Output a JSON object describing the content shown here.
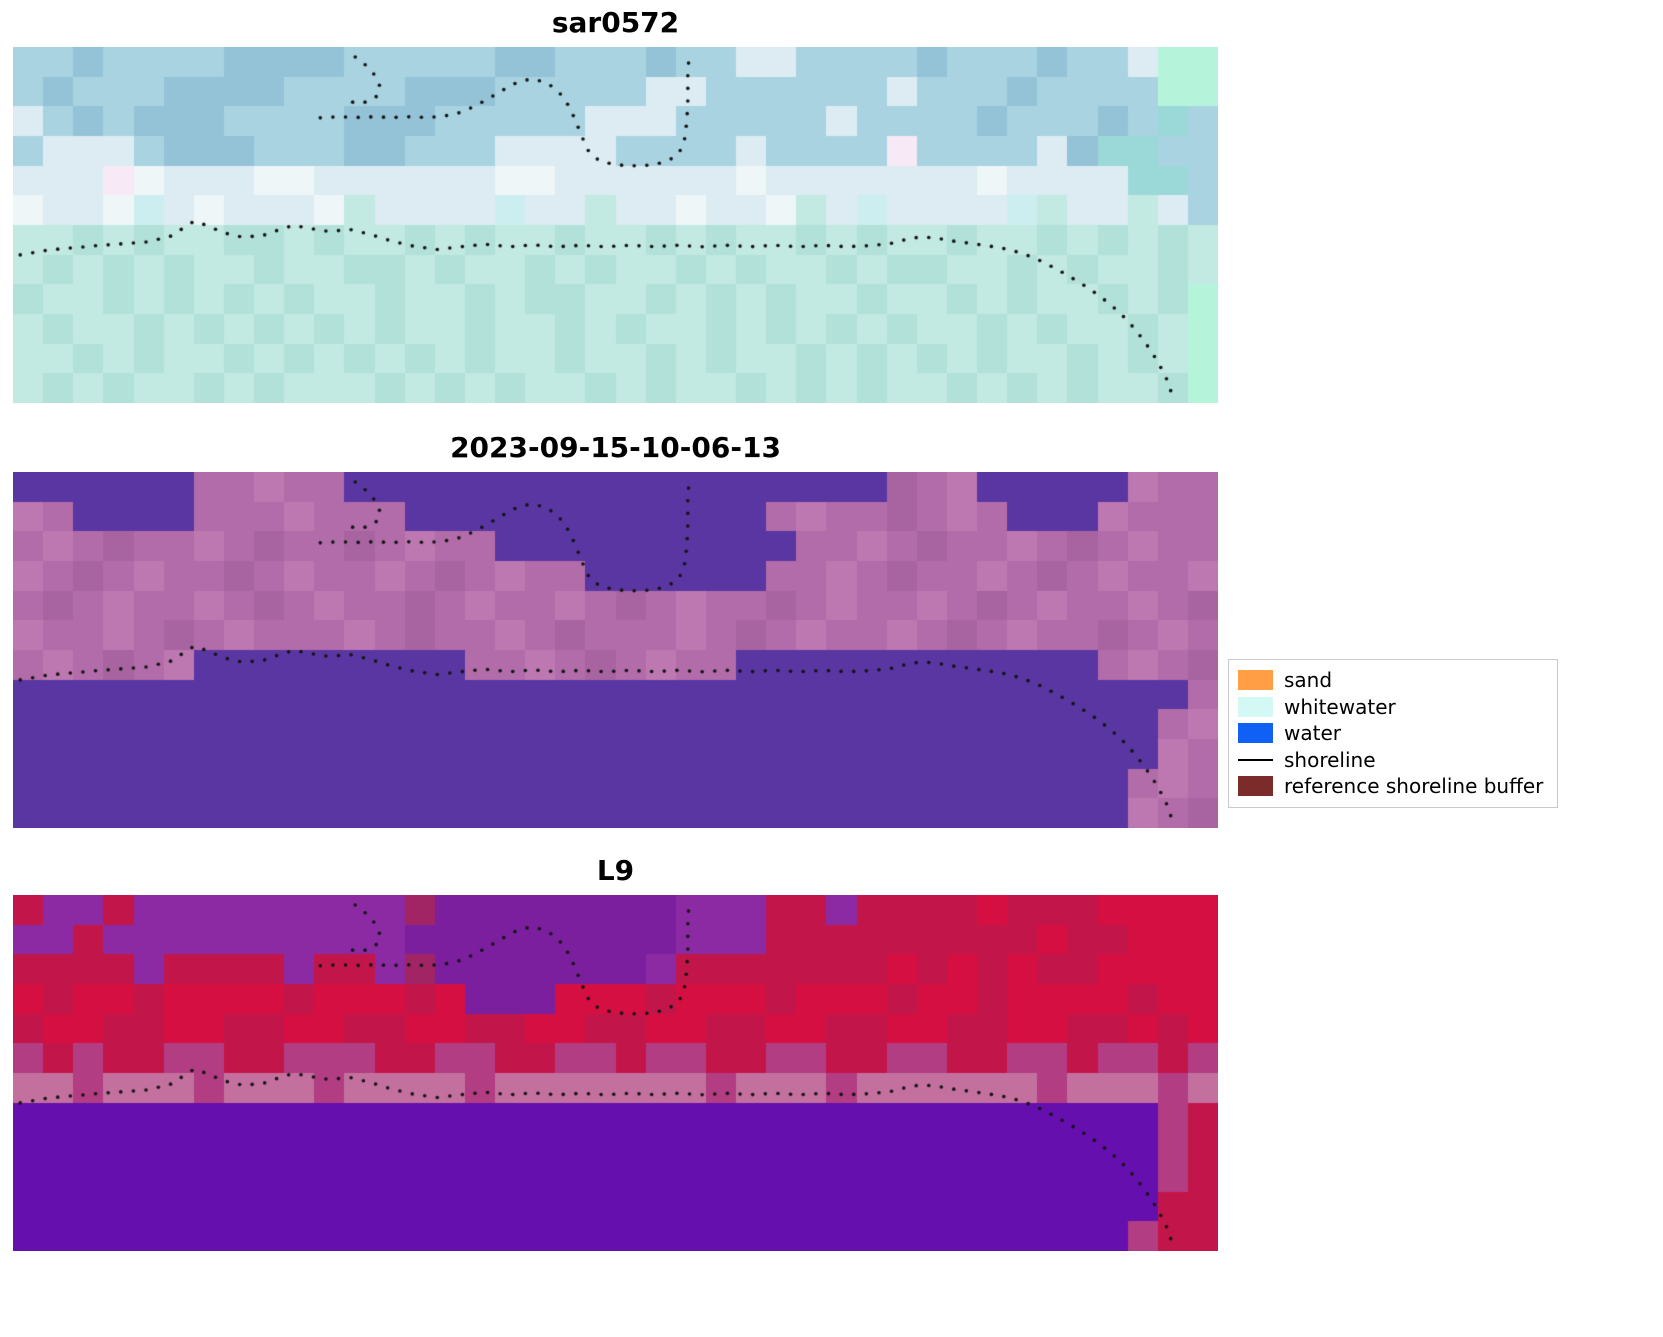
{
  "figure": {
    "background": "#ffffff",
    "panels": [
      {
        "id": "sar",
        "title": "sar0572",
        "palette": {
          "0": "#c3e9e3",
          "1": "#b2e1da",
          "2": "#a9d3e1",
          "3": "#94c3d7",
          "4": "#dcecf2",
          "5": "#eef6f8",
          "6": "#f7e9f5",
          "7": "#cdeef0",
          "8": "#b5f4db",
          "9": "#9bd8d8"
        },
        "rows": [
          "2232222333322222332223224422223222322488",
          "2322233332222333222224422222242223222288",
          "4232333222233322222444222224222232223292",
          "2444233322233222444422224222262222439922",
          "4446544455444444554444445444444454444992",
          "5445745444504444744044544504744447044042",
          "0010100110100101001001010010100100101010",
          "0101010010011010010100101001011001010010",
          "1001010101001001011001010100100101001018",
          "0100101010101001001010010101010010100108",
          "0010100101010101001001010010101010010108",
          "0101001010001010100101001010100101010018"
        ]
      },
      {
        "id": "classification",
        "title": "2023-09-15-10-06-13",
        "palette": {
          "0": "#5a36a3",
          "1": "#b26ca9",
          "2": "#bd78b2",
          "3": "#a864a0",
          "4": "#c884ba"
        },
        "rows": [
          "0000001121100000000000000000031200000211",
          "2100001112111000000000000121131210002111",
          "1213112131131211000000000011213112131211",
          "2131211312112131211000000112131121312112",
          "1312112131211312112131211312112131211213",
          "2112131211121311213111213121121312113121",
          "1213120000000001121312110000000000001213",
          "0000000000000000000000000000000000000001",
          "0000000000000000000000000000000000000012",
          "0000000000000000000000000000000000000021",
          "0000000000000000000000000000000000000121",
          "0000000000000000000000000000000000000213"
        ]
      },
      {
        "id": "l9",
        "title": "L9",
        "palette": {
          "0": "#650fae",
          "1": "#8c2aa4",
          "2": "#c2164a",
          "3": "#d60f42",
          "4": "#b23d82",
          "5": "#c4709f",
          "6": "#7b1f9e",
          "7": "#a12565"
        },
        "rows": [
          "2112111111111766666666111221222232223333",
          "1121111111111666666666111222222222322333",
          "2222122221221766666661222222232323223333",
          "3233233332333236663332333233323323333233",
          "2332233223322332233223322332233223322323",
          "4242244224442244224424422442244224424424",
          "5545554555455554555555545554555555455545",
          "0000000000000000000000000000000000000042",
          "0000000000000000000000000000000000000042",
          "0000000000000000000000000000000000000042",
          "0000000000000000000000000000000000000022",
          "0000000000000000000000000000000000000422"
        ]
      }
    ],
    "shoreline": {
      "color": "#141414",
      "dot_radius": 1.8,
      "spacing": 0.0105,
      "paths": {
        "main": [
          [
            0.006,
            0.584
          ],
          [
            0.03,
            0.57
          ],
          [
            0.07,
            0.558
          ],
          [
            0.11,
            0.548
          ],
          [
            0.13,
            0.533
          ],
          [
            0.143,
            0.505
          ],
          [
            0.15,
            0.49
          ],
          [
            0.16,
            0.5
          ],
          [
            0.175,
            0.522
          ],
          [
            0.19,
            0.534
          ],
          [
            0.207,
            0.53
          ],
          [
            0.222,
            0.512
          ],
          [
            0.233,
            0.501
          ],
          [
            0.247,
            0.51
          ],
          [
            0.262,
            0.518
          ],
          [
            0.28,
            0.513
          ],
          [
            0.297,
            0.527
          ],
          [
            0.315,
            0.546
          ],
          [
            0.333,
            0.56
          ],
          [
            0.352,
            0.569
          ],
          [
            0.372,
            0.561
          ],
          [
            0.392,
            0.554
          ],
          [
            0.412,
            0.561
          ],
          [
            0.432,
            0.556
          ],
          [
            0.452,
            0.561
          ],
          [
            0.472,
            0.557
          ],
          [
            0.492,
            0.561
          ],
          [
            0.512,
            0.557
          ],
          [
            0.532,
            0.561
          ],
          [
            0.552,
            0.557
          ],
          [
            0.572,
            0.561
          ],
          [
            0.592,
            0.557
          ],
          [
            0.612,
            0.561
          ],
          [
            0.632,
            0.557
          ],
          [
            0.652,
            0.561
          ],
          [
            0.672,
            0.557
          ],
          [
            0.692,
            0.561
          ],
          [
            0.712,
            0.558
          ],
          [
            0.728,
            0.552
          ],
          [
            0.742,
            0.54
          ],
          [
            0.752,
            0.534
          ],
          [
            0.765,
            0.536
          ],
          [
            0.78,
            0.545
          ],
          [
            0.795,
            0.552
          ],
          [
            0.81,
            0.559
          ],
          [
            0.825,
            0.568
          ],
          [
            0.838,
            0.58
          ],
          [
            0.851,
            0.598
          ],
          [
            0.864,
            0.62
          ],
          [
            0.877,
            0.645
          ],
          [
            0.89,
            0.672
          ],
          [
            0.902,
            0.7
          ],
          [
            0.913,
            0.73
          ],
          [
            0.923,
            0.762
          ],
          [
            0.932,
            0.796
          ],
          [
            0.94,
            0.832
          ],
          [
            0.947,
            0.868
          ],
          [
            0.953,
            0.903
          ],
          [
            0.958,
            0.937
          ],
          [
            0.961,
            0.968
          ]
        ],
        "upper": [
          [
            0.255,
            0.199
          ],
          [
            0.27,
            0.196
          ],
          [
            0.285,
            0.198
          ],
          [
            0.3,
            0.196
          ],
          [
            0.315,
            0.198
          ],
          [
            0.33,
            0.196
          ],
          [
            0.345,
            0.198
          ],
          [
            0.358,
            0.194
          ],
          [
            0.37,
            0.185
          ],
          [
            0.382,
            0.168
          ],
          [
            0.394,
            0.146
          ],
          [
            0.406,
            0.122
          ],
          [
            0.417,
            0.102
          ],
          [
            0.429,
            0.09
          ],
          [
            0.44,
            0.097
          ],
          [
            0.449,
            0.114
          ],
          [
            0.457,
            0.142
          ],
          [
            0.463,
            0.177
          ],
          [
            0.468,
            0.217
          ],
          [
            0.473,
            0.258
          ],
          [
            0.478,
            0.295
          ],
          [
            0.486,
            0.318
          ],
          [
            0.497,
            0.329
          ],
          [
            0.511,
            0.334
          ],
          [
            0.526,
            0.332
          ],
          [
            0.539,
            0.325
          ],
          [
            0.549,
            0.31
          ],
          [
            0.555,
            0.285
          ],
          [
            0.558,
            0.25
          ],
          [
            0.559,
            0.21
          ],
          [
            0.56,
            0.165
          ],
          [
            0.56,
            0.12
          ],
          [
            0.56,
            0.072
          ],
          [
            0.561,
            0.028
          ]
        ],
        "hook": [
          [
            0.284,
            0.028
          ],
          [
            0.293,
            0.052
          ],
          [
            0.301,
            0.082
          ],
          [
            0.305,
            0.115
          ],
          [
            0.301,
            0.142
          ],
          [
            0.29,
            0.158
          ],
          [
            0.277,
            0.153
          ]
        ]
      }
    },
    "legend": {
      "items": [
        {
          "label": "sand",
          "type": "patch",
          "color": "#ff9e44"
        },
        {
          "label": "whitewater",
          "type": "patch",
          "color": "#d4f8f3"
        },
        {
          "label": "water",
          "type": "patch",
          "color": "#1160f6"
        },
        {
          "label": "shoreline",
          "type": "line",
          "color": "#000000"
        },
        {
          "label": "reference shoreline buffer",
          "type": "patch",
          "color": "#7c2b2b"
        }
      ]
    }
  },
  "chart_data": {
    "type": "heatmap",
    "title": "",
    "panels": [
      "sar0572",
      "2023-09-15-10-06-13",
      "L9"
    ],
    "panel_grid": "3 rows x 1 column, image panels 40x12 coarse pixels each",
    "legend_entries": [
      "sand",
      "whitewater",
      "water",
      "shoreline",
      "reference shoreline buffer"
    ],
    "legend_position": "center right",
    "annotations": "dotted black shoreline trace overlaid identically on all three panels"
  }
}
